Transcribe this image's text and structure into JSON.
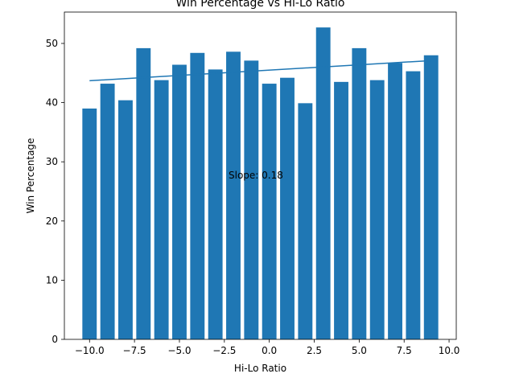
{
  "chart_data": {
    "type": "bar",
    "title": "Win Percentage vs Hi-Lo Ratio",
    "xlabel": "Hi-Lo Ratio",
    "ylabel": "Win Percentage",
    "x": [
      -10,
      -9,
      -8,
      -7,
      -6,
      -5,
      -4,
      -3,
      -2,
      -1,
      0,
      1,
      2,
      3,
      4,
      5,
      6,
      7,
      8,
      9
    ],
    "values": [
      39.0,
      43.2,
      40.4,
      49.2,
      43.8,
      46.4,
      48.4,
      45.6,
      48.6,
      47.1,
      43.2,
      44.2,
      39.9,
      52.7,
      43.5,
      49.2,
      43.8,
      46.7,
      45.3,
      48.0
    ],
    "bar_width": 0.8,
    "trendline": {
      "x": [
        -10,
        9
      ],
      "y": [
        43.7,
        47.1
      ]
    },
    "annotation": "Slope: 0.18",
    "xlim": [
      -11.4,
      10.4
    ],
    "ylim": [
      0,
      55.3
    ],
    "xticks": [
      -10.0,
      -7.5,
      -5.0,
      -2.5,
      0.0,
      2.5,
      5.0,
      7.5,
      10.0
    ],
    "xtick_labels": [
      "−10.0",
      "−7.5",
      "−5.0",
      "−2.5",
      "0.0",
      "2.5",
      "5.0",
      "7.5",
      "10.0"
    ],
    "yticks": [
      0,
      10,
      20,
      30,
      40,
      50
    ],
    "ytick_labels": [
      "0",
      "10",
      "20",
      "30",
      "40",
      "50"
    ],
    "grid": false,
    "legend": "none",
    "colors": {
      "bar": "#1f77b4",
      "line": "#1f77b4",
      "axis": "#000000"
    }
  }
}
